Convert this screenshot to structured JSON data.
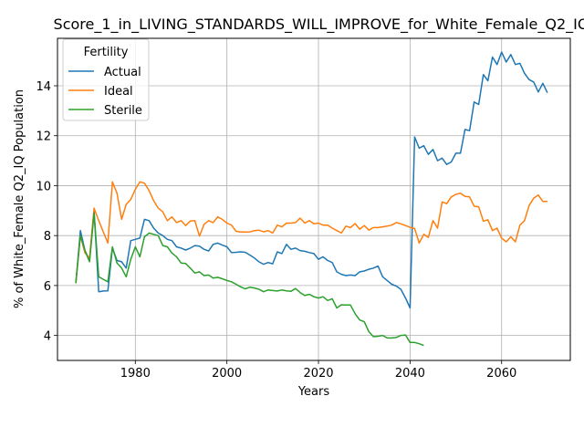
{
  "chart_data": {
    "type": "line",
    "title": "Score_1_in_LIVING_STANDARDS_WILL_IMPROVE_for_White_Female_Q2_IQ",
    "xlabel": "Years",
    "ylabel": "% of White_Female Q2_IQ Population",
    "xlim": [
      1963,
      2075
    ],
    "ylim": [
      3.0,
      15.9
    ],
    "xticks": [
      1980,
      2000,
      2020,
      2040,
      2060
    ],
    "yticks": [
      4,
      6,
      8,
      10,
      12,
      14
    ],
    "grid": true,
    "legend": {
      "title": "Fertility",
      "placement": "top-left"
    },
    "series": [
      {
        "name": "Actual",
        "color": "#1f77b4",
        "x": [
          1967,
          1968,
          1969,
          1970,
          1971,
          1972,
          1973,
          1974,
          1975,
          1976,
          1977,
          1978,
          1979,
          1980,
          1981,
          1982,
          1983,
          1984,
          1985,
          1986,
          1987,
          1988,
          1989,
          1990,
          1991,
          1992,
          1993,
          1994,
          1995,
          1996,
          1997,
          1998,
          1999,
          2000,
          2001,
          2002,
          2003,
          2004,
          2005,
          2006,
          2007,
          2008,
          2009,
          2010,
          2011,
          2012,
          2013,
          2014,
          2015,
          2016,
          2017,
          2018,
          2019,
          2020,
          2021,
          2022,
          2023,
          2024,
          2025,
          2026,
          2027,
          2028,
          2029,
          2030,
          2031,
          2032,
          2033,
          2034,
          2035,
          2036,
          2037,
          2038,
          2039,
          2040,
          2041,
          2042,
          2043,
          2044,
          2045,
          2046,
          2047,
          2048,
          2049,
          2050,
          2051,
          2052,
          2053,
          2054,
          2055,
          2056,
          2057,
          2058,
          2059,
          2060,
          2061,
          2062,
          2063,
          2064,
          2065,
          2066,
          2067,
          2068,
          2069,
          2070
        ],
        "y": [
          6.1,
          8.2,
          7.4,
          7.0,
          9.0,
          5.75,
          5.78,
          5.79,
          7.5,
          7.0,
          6.95,
          6.7,
          7.8,
          7.85,
          7.9,
          8.65,
          8.6,
          8.3,
          8.1,
          8.0,
          7.85,
          7.8,
          7.55,
          7.5,
          7.42,
          7.5,
          7.6,
          7.58,
          7.45,
          7.38,
          7.65,
          7.7,
          7.62,
          7.55,
          7.32,
          7.33,
          7.35,
          7.33,
          7.22,
          7.1,
          6.95,
          6.85,
          6.92,
          6.87,
          7.35,
          7.28,
          7.65,
          7.45,
          7.5,
          7.4,
          7.37,
          7.32,
          7.28,
          7.05,
          7.15,
          7.0,
          6.92,
          6.55,
          6.45,
          6.4,
          6.42,
          6.4,
          6.55,
          6.58,
          6.65,
          6.7,
          6.78,
          6.35,
          6.2,
          6.05,
          5.98,
          5.85,
          5.5,
          5.1,
          11.95,
          11.5,
          11.6,
          11.25,
          11.45,
          11.0,
          11.1,
          10.85,
          10.95,
          11.3,
          11.3,
          12.25,
          12.2,
          13.35,
          13.25,
          14.45,
          14.2,
          15.15,
          14.85,
          15.35,
          14.95,
          15.25,
          14.85,
          14.9,
          14.5,
          14.25,
          14.15,
          13.75,
          14.1,
          13.72
        ]
      },
      {
        "name": "Ideal",
        "color": "#ff7f0e",
        "x": [
          1967,
          1968,
          1969,
          1970,
          1971,
          1972,
          1973,
          1974,
          1975,
          1976,
          1977,
          1978,
          1979,
          1980,
          1981,
          1982,
          1983,
          1984,
          1985,
          1986,
          1987,
          1988,
          1989,
          1990,
          1991,
          1992,
          1993,
          1994,
          1995,
          1996,
          1997,
          1998,
          1999,
          2000,
          2001,
          2002,
          2003,
          2004,
          2005,
          2006,
          2007,
          2008,
          2009,
          2010,
          2011,
          2012,
          2013,
          2014,
          2015,
          2016,
          2017,
          2018,
          2019,
          2020,
          2021,
          2022,
          2023,
          2024,
          2025,
          2026,
          2027,
          2028,
          2029,
          2030,
          2031,
          2032,
          2033,
          2034,
          2035,
          2036,
          2037,
          2038,
          2039,
          2040,
          2041,
          2042,
          2043,
          2044,
          2045,
          2046,
          2047,
          2048,
          2049,
          2050,
          2051,
          2052,
          2053,
          2054,
          2055,
          2056,
          2057,
          2058,
          2059,
          2060,
          2061,
          2062,
          2063,
          2064,
          2065,
          2066,
          2067,
          2068,
          2069,
          2070
        ],
        "y": [
          6.1,
          8.0,
          7.3,
          7.1,
          9.1,
          8.6,
          8.15,
          7.7,
          10.15,
          9.7,
          8.65,
          9.25,
          9.45,
          9.85,
          10.15,
          10.1,
          9.8,
          9.4,
          9.1,
          8.95,
          8.6,
          8.75,
          8.52,
          8.6,
          8.4,
          8.58,
          8.6,
          7.98,
          8.45,
          8.6,
          8.52,
          8.75,
          8.65,
          8.5,
          8.42,
          8.17,
          8.14,
          8.14,
          8.15,
          8.2,
          8.22,
          8.15,
          8.2,
          8.1,
          8.42,
          8.35,
          8.5,
          8.5,
          8.52,
          8.7,
          8.5,
          8.6,
          8.47,
          8.5,
          8.42,
          8.42,
          8.3,
          8.2,
          8.1,
          8.38,
          8.32,
          8.48,
          8.26,
          8.4,
          8.22,
          8.32,
          8.32,
          8.35,
          8.38,
          8.42,
          8.52,
          8.47,
          8.4,
          8.33,
          8.28,
          7.7,
          8.05,
          7.93,
          8.6,
          8.3,
          9.35,
          9.28,
          9.55,
          9.65,
          9.7,
          9.57,
          9.55,
          9.18,
          9.15,
          8.58,
          8.63,
          8.2,
          8.3,
          7.9,
          7.75,
          7.95,
          7.75,
          8.42,
          8.6,
          9.2,
          9.5,
          9.62,
          9.37,
          9.37
        ]
      },
      {
        "name": "Sterile",
        "color": "#2ca02c",
        "x": [
          1967,
          1968,
          1969,
          1970,
          1971,
          1972,
          1973,
          1974,
          1975,
          1976,
          1977,
          1978,
          1979,
          1980,
          1981,
          1982,
          1983,
          1984,
          1985,
          1986,
          1987,
          1988,
          1989,
          1990,
          1991,
          1992,
          1993,
          1994,
          1995,
          1996,
          1997,
          1998,
          1999,
          2000,
          2001,
          2002,
          2003,
          2004,
          2005,
          2006,
          2007,
          2008,
          2009,
          2010,
          2011,
          2012,
          2013,
          2014,
          2015,
          2016,
          2017,
          2018,
          2019,
          2020,
          2021,
          2022,
          2023,
          2024,
          2025,
          2026,
          2027,
          2028,
          2029,
          2030,
          2031,
          2032,
          2033,
          2034,
          2035,
          2036,
          2037,
          2038,
          2039,
          2040,
          2041,
          2042,
          2043
        ],
        "y": [
          6.1,
          8.0,
          7.4,
          6.95,
          8.9,
          6.35,
          6.25,
          6.15,
          7.55,
          6.9,
          6.7,
          6.35,
          7.05,
          7.55,
          7.15,
          7.95,
          8.1,
          8.05,
          8.0,
          7.6,
          7.55,
          7.3,
          7.15,
          6.9,
          6.88,
          6.7,
          6.5,
          6.55,
          6.4,
          6.42,
          6.3,
          6.33,
          6.27,
          6.2,
          6.15,
          6.05,
          5.95,
          5.87,
          5.93,
          5.9,
          5.85,
          5.75,
          5.82,
          5.8,
          5.78,
          5.82,
          5.79,
          5.77,
          5.88,
          5.72,
          5.6,
          5.65,
          5.55,
          5.5,
          5.55,
          5.4,
          5.47,
          5.1,
          5.23,
          5.22,
          5.22,
          4.87,
          4.62,
          4.55,
          4.15,
          3.95,
          3.97,
          4.0,
          3.9,
          3.9,
          3.92,
          4.0,
          4.02,
          3.72,
          3.72,
          3.67,
          3.6
        ]
      }
    ]
  }
}
